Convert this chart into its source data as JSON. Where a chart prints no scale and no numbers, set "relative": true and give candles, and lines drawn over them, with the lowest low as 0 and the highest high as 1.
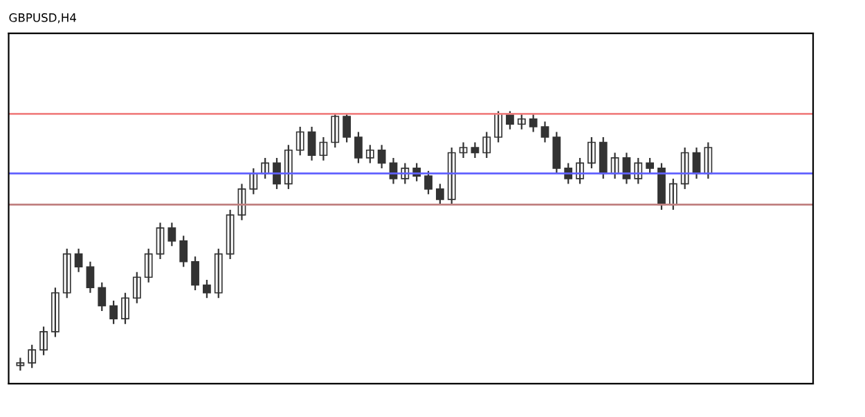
{
  "chart_data": {
    "type": "candlestick",
    "title": "GBPUSD,H4",
    "relative": true,
    "color": "#333333",
    "categories": [
      null,
      null,
      null,
      null,
      null,
      null,
      null,
      null,
      null,
      null,
      null,
      null,
      null,
      null,
      null,
      null,
      null,
      null,
      null,
      null,
      null,
      null,
      null,
      null,
      null,
      null,
      null,
      null,
      null,
      null,
      null,
      null,
      null,
      null,
      null,
      null,
      null,
      null,
      null,
      null,
      null,
      null,
      null,
      null,
      null,
      null,
      null,
      null,
      null,
      null,
      null,
      null,
      null,
      null,
      null,
      null,
      null,
      null,
      null,
      null
    ],
    "ohlc": [
      [
        0.02,
        0.05,
        0.0,
        0.03
      ],
      [
        0.03,
        0.1,
        0.01,
        0.08
      ],
      [
        0.08,
        0.17,
        0.06,
        0.15
      ],
      [
        0.15,
        0.32,
        0.13,
        0.3
      ],
      [
        0.3,
        0.47,
        0.28,
        0.45
      ],
      [
        0.45,
        0.47,
        0.38,
        0.4
      ],
      [
        0.4,
        0.42,
        0.3,
        0.32
      ],
      [
        0.32,
        0.34,
        0.23,
        0.25
      ],
      [
        0.25,
        0.27,
        0.18,
        0.2
      ],
      [
        0.2,
        0.3,
        0.18,
        0.28
      ],
      [
        0.28,
        0.38,
        0.26,
        0.36
      ],
      [
        0.36,
        0.47,
        0.34,
        0.45
      ],
      [
        0.45,
        0.57,
        0.43,
        0.55
      ],
      [
        0.55,
        0.57,
        0.48,
        0.5
      ],
      [
        0.5,
        0.52,
        0.4,
        0.42
      ],
      [
        0.42,
        0.44,
        0.31,
        0.33
      ],
      [
        0.33,
        0.35,
        0.28,
        0.3
      ],
      [
        0.3,
        0.47,
        0.28,
        0.45
      ],
      [
        0.45,
        0.62,
        0.43,
        0.6
      ],
      [
        0.6,
        0.72,
        0.58,
        0.7
      ],
      [
        0.7,
        0.78,
        0.68,
        0.76
      ],
      [
        0.76,
        0.82,
        0.74,
        0.8
      ],
      [
        0.8,
        0.82,
        0.7,
        0.72
      ],
      [
        0.72,
        0.87,
        0.7,
        0.85
      ],
      [
        0.85,
        0.94,
        0.83,
        0.92
      ],
      [
        0.92,
        0.94,
        0.81,
        0.83
      ],
      [
        0.83,
        0.9,
        0.81,
        0.88
      ],
      [
        0.88,
        0.99,
        0.86,
        0.98
      ],
      [
        0.98,
        0.99,
        0.88,
        0.9
      ],
      [
        0.9,
        0.92,
        0.8,
        0.82
      ],
      [
        0.82,
        0.87,
        0.8,
        0.85
      ],
      [
        0.85,
        0.87,
        0.78,
        0.8
      ],
      [
        0.8,
        0.82,
        0.72,
        0.74
      ],
      [
        0.74,
        0.8,
        0.72,
        0.78
      ],
      [
        0.78,
        0.8,
        0.73,
        0.75
      ],
      [
        0.75,
        0.77,
        0.68,
        0.7
      ],
      [
        0.7,
        0.72,
        0.64,
        0.66
      ],
      [
        0.66,
        0.86,
        0.64,
        0.84
      ],
      [
        0.84,
        0.88,
        0.82,
        0.86
      ],
      [
        0.86,
        0.88,
        0.82,
        0.84
      ],
      [
        0.84,
        0.92,
        0.82,
        0.9
      ],
      [
        0.9,
        1.0,
        0.88,
        0.99
      ],
      [
        0.99,
        1.0,
        0.93,
        0.95
      ],
      [
        0.95,
        0.99,
        0.93,
        0.97
      ],
      [
        0.97,
        0.99,
        0.92,
        0.94
      ],
      [
        0.94,
        0.96,
        0.88,
        0.9
      ],
      [
        0.9,
        0.92,
        0.76,
        0.78
      ],
      [
        0.78,
        0.8,
        0.72,
        0.74
      ],
      [
        0.74,
        0.82,
        0.72,
        0.8
      ],
      [
        0.8,
        0.9,
        0.78,
        0.88
      ],
      [
        0.88,
        0.9,
        0.74,
        0.76
      ],
      [
        0.76,
        0.84,
        0.74,
        0.82
      ],
      [
        0.82,
        0.84,
        0.72,
        0.74
      ],
      [
        0.74,
        0.82,
        0.72,
        0.8
      ],
      [
        0.8,
        0.82,
        0.76,
        0.78
      ],
      [
        0.78,
        0.8,
        0.62,
        0.64
      ],
      [
        0.64,
        0.74,
        0.62,
        0.72
      ],
      [
        0.72,
        0.86,
        0.7,
        0.84
      ],
      [
        0.84,
        0.86,
        0.74,
        0.76
      ],
      [
        0.76,
        0.88,
        0.74,
        0.86
      ]
    ],
    "ref_lines": [
      {
        "axis": "y",
        "value": 0.99,
        "color": "#f08080"
      },
      {
        "axis": "y",
        "value": 0.76,
        "color": "#6060ff"
      },
      {
        "axis": "y",
        "value": 0.64,
        "color": "#c08080"
      }
    ],
    "tick_labels": false,
    "grid": false
  }
}
